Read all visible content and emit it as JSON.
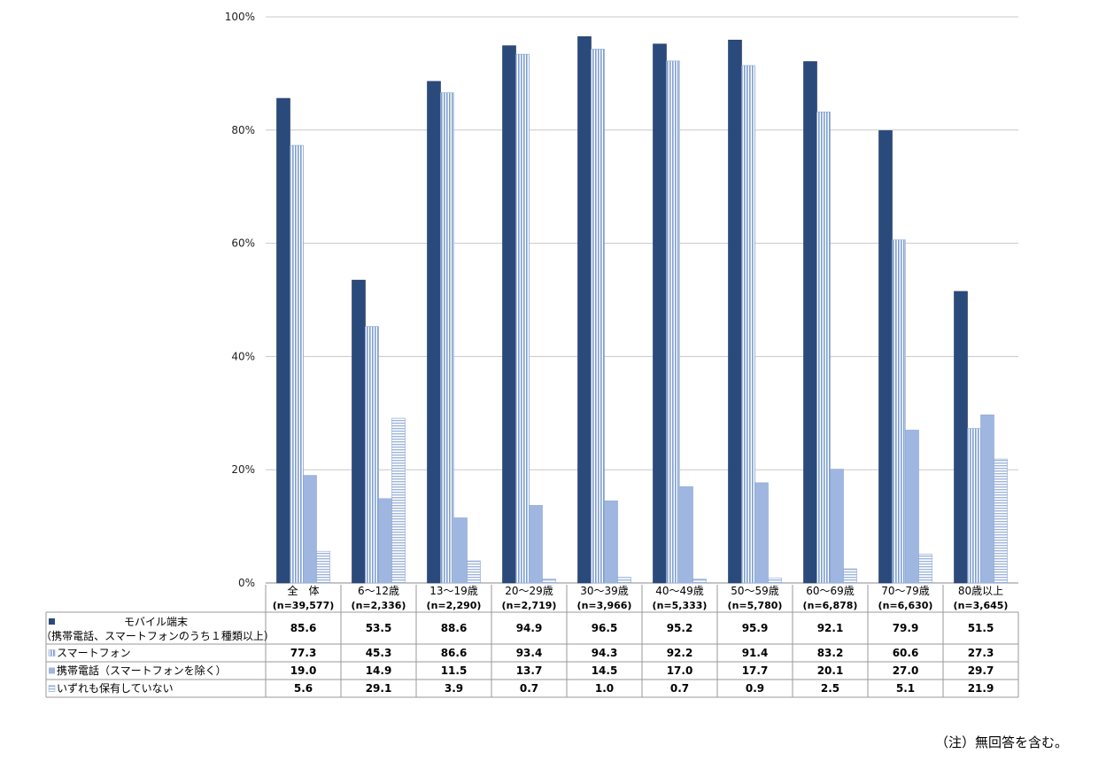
{
  "note": "（注）無回答を含む。",
  "chart_data": {
    "type": "bar",
    "ylim": [
      0,
      100
    ],
    "yticks": [
      "0%",
      "20%",
      "40%",
      "60%",
      "80%",
      "100%"
    ],
    "grid": true,
    "categories": [
      "全　体",
      "6～12歳",
      "13～19歳",
      "20～29歳",
      "30～39歳",
      "40～49歳",
      "50～59歳",
      "60～69歳",
      "70～79歳",
      "80歳以上"
    ],
    "category_n": [
      "(n=39,577)",
      "(n=2,336)",
      "(n=2,290)",
      "(n=2,719)",
      "(n=3,966)",
      "(n=5,333)",
      "(n=5,780)",
      "(n=6,878)",
      "(n=6,630)",
      "(n=3,645)"
    ],
    "series": [
      {
        "name": "モバイル端末",
        "name_line2": "（携帯電話、スマートフォンのうち１種類以上）",
        "color": "#2b4a7c",
        "pattern": "solid",
        "values": [
          85.6,
          53.5,
          88.6,
          94.9,
          96.5,
          95.2,
          95.9,
          92.1,
          79.9,
          51.5
        ]
      },
      {
        "name": "スマートフォン",
        "color": "#7f9fd0",
        "pattern": "vertical-lines",
        "values": [
          77.3,
          45.3,
          86.6,
          93.4,
          94.3,
          92.2,
          91.4,
          83.2,
          60.6,
          27.3
        ]
      },
      {
        "name": "携帯電話（スマートフォンを除く）",
        "color": "#9fb7e0",
        "pattern": "solid",
        "values": [
          19.0,
          14.9,
          11.5,
          13.7,
          14.5,
          17.0,
          17.7,
          20.1,
          27.0,
          29.7
        ]
      },
      {
        "name": "いずれも保有していない",
        "color": "#aabfe3",
        "pattern": "horizontal-lines",
        "values": [
          5.6,
          29.1,
          3.9,
          0.7,
          1.0,
          0.7,
          0.9,
          2.5,
          5.1,
          21.9
        ]
      }
    ],
    "table_values": [
      [
        "85.6",
        "53.5",
        "88.6",
        "94.9",
        "96.5",
        "95.2",
        "95.9",
        "92.1",
        "79.9",
        "51.5"
      ],
      [
        "77.3",
        "45.3",
        "86.6",
        "93.4",
        "94.3",
        "92.2",
        "91.4",
        "83.2",
        "60.6",
        "27.3"
      ],
      [
        "19.0",
        "14.9",
        "11.5",
        "13.7",
        "14.5",
        "17.0",
        "17.7",
        "20.1",
        "27.0",
        "29.7"
      ],
      [
        "5.6",
        "29.1",
        "3.9",
        "0.7",
        "1.0",
        "0.7",
        "0.9",
        "2.5",
        "5.1",
        "21.9"
      ]
    ]
  }
}
